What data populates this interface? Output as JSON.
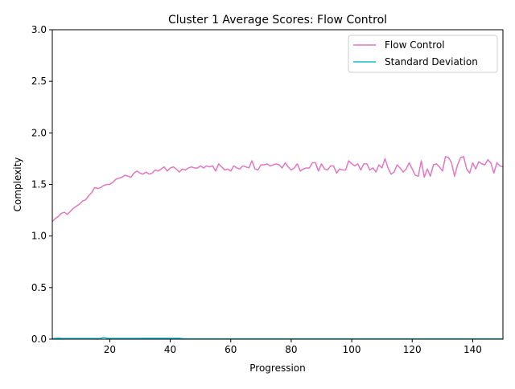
{
  "chart_data": {
    "type": "line",
    "title": "Cluster 1 Average Scores: Flow Control",
    "xlabel": "Progression",
    "ylabel": "Complexity",
    "xlim": [
      1,
      150
    ],
    "ylim": [
      0,
      3.0
    ],
    "xticks": [
      20,
      40,
      60,
      80,
      100,
      120,
      140
    ],
    "xtick_labels": [
      "20",
      "40",
      "60",
      "80",
      "100",
      "120",
      "140"
    ],
    "yticks": [
      0,
      0.5,
      1.0,
      1.5,
      2.0,
      2.5,
      3.0
    ],
    "ytick_labels": [
      "0.0",
      "0.5",
      "1.0",
      "1.5",
      "2.0",
      "2.5",
      "3.0"
    ],
    "grid": false,
    "legend_position": "top-right",
    "series": [
      {
        "name": "Flow Control",
        "color": "#e377c2",
        "x": [
          1,
          2,
          3,
          4,
          5,
          6,
          7,
          8,
          9,
          10,
          11,
          12,
          13,
          14,
          15,
          16,
          17,
          18,
          19,
          20,
          21,
          22,
          23,
          24,
          25,
          26,
          27,
          28,
          29,
          30,
          31,
          32,
          33,
          34,
          35,
          36,
          37,
          38,
          39,
          40,
          41,
          42,
          43,
          44,
          45,
          46,
          47,
          48,
          49,
          50,
          51,
          52,
          53,
          54,
          55,
          56,
          57,
          58,
          59,
          60,
          61,
          62,
          63,
          64,
          65,
          66,
          67,
          68,
          69,
          70,
          71,
          72,
          73,
          74,
          75,
          76,
          77,
          78,
          79,
          80,
          81,
          82,
          83,
          84,
          85,
          86,
          87,
          88,
          89,
          90,
          91,
          92,
          93,
          94,
          95,
          96,
          97,
          98,
          99,
          100,
          101,
          102,
          103,
          104,
          105,
          106,
          107,
          108,
          109,
          110,
          111,
          112,
          113,
          114,
          115,
          116,
          117,
          118,
          119,
          120,
          121,
          122,
          123,
          124,
          125,
          126,
          127,
          128,
          129,
          130,
          131,
          132,
          133,
          134,
          135,
          136,
          137,
          138,
          139,
          140,
          141,
          142,
          143,
          144,
          145,
          146,
          147,
          148,
          149,
          150
        ],
        "values": [
          1.14,
          1.17,
          1.19,
          1.22,
          1.23,
          1.21,
          1.24,
          1.27,
          1.29,
          1.31,
          1.34,
          1.35,
          1.39,
          1.42,
          1.47,
          1.46,
          1.47,
          1.49,
          1.5,
          1.5,
          1.52,
          1.55,
          1.56,
          1.57,
          1.59,
          1.58,
          1.57,
          1.61,
          1.63,
          1.61,
          1.6,
          1.62,
          1.6,
          1.61,
          1.64,
          1.63,
          1.65,
          1.67,
          1.63,
          1.66,
          1.67,
          1.65,
          1.62,
          1.65,
          1.64,
          1.66,
          1.67,
          1.66,
          1.66,
          1.68,
          1.66,
          1.68,
          1.67,
          1.68,
          1.63,
          1.7,
          1.67,
          1.64,
          1.65,
          1.63,
          1.68,
          1.66,
          1.65,
          1.68,
          1.67,
          1.66,
          1.73,
          1.65,
          1.64,
          1.69,
          1.69,
          1.7,
          1.68,
          1.69,
          1.7,
          1.69,
          1.66,
          1.71,
          1.67,
          1.64,
          1.66,
          1.7,
          1.63,
          1.65,
          1.66,
          1.66,
          1.71,
          1.71,
          1.63,
          1.7,
          1.65,
          1.64,
          1.68,
          1.68,
          1.61,
          1.65,
          1.64,
          1.64,
          1.73,
          1.7,
          1.68,
          1.7,
          1.64,
          1.7,
          1.7,
          1.64,
          1.66,
          1.62,
          1.69,
          1.66,
          1.75,
          1.66,
          1.6,
          1.62,
          1.69,
          1.66,
          1.62,
          1.65,
          1.71,
          1.65,
          1.59,
          1.58,
          1.73,
          1.57,
          1.65,
          1.58,
          1.69,
          1.7,
          1.67,
          1.63,
          1.77,
          1.76,
          1.71,
          1.58,
          1.69,
          1.76,
          1.77,
          1.65,
          1.61,
          1.71,
          1.65,
          1.72,
          1.7,
          1.69,
          1.74,
          1.71,
          1.61,
          1.71,
          1.68,
          1.67
        ]
      },
      {
        "name": "Standard Deviation",
        "color": "#17becf",
        "x": [
          1,
          2,
          3,
          4,
          5,
          6,
          7,
          8,
          9,
          10,
          11,
          12,
          13,
          14,
          15,
          16,
          17,
          18,
          19,
          20,
          21,
          22,
          23,
          24,
          25,
          26,
          27,
          28,
          29,
          30,
          31,
          32,
          33,
          34,
          35,
          36,
          37,
          38,
          39,
          40,
          41,
          42,
          43,
          44,
          45,
          46,
          47,
          48,
          49,
          50,
          51,
          52,
          53,
          54,
          55,
          56,
          57,
          58,
          59,
          60,
          61,
          62,
          63,
          64,
          65,
          66,
          67,
          68,
          69,
          70,
          71,
          72,
          73,
          74,
          75,
          76,
          77,
          78,
          79,
          80,
          81,
          82,
          83,
          84,
          85,
          86,
          87,
          88,
          89,
          90,
          91,
          92,
          93,
          94,
          95,
          96,
          97,
          98,
          99,
          100,
          101,
          102,
          103,
          104,
          105,
          106,
          107,
          108,
          109,
          110,
          111,
          112,
          113,
          114,
          115,
          116,
          117,
          118,
          119,
          120,
          121,
          122,
          123,
          124,
          125,
          126,
          127,
          128,
          129,
          130,
          131,
          132,
          133,
          134,
          135,
          136,
          137,
          138,
          139,
          140,
          141,
          142,
          143,
          144,
          145,
          146,
          147,
          148,
          149,
          150
        ],
        "values": [
          0.005,
          0.008,
          0.01,
          0.008,
          0.007,
          0.007,
          0.007,
          0.007,
          0.007,
          0.007,
          0.007,
          0.007,
          0.007,
          0.007,
          0.007,
          0.007,
          0.008,
          0.018,
          0.01,
          0.008,
          0.008,
          0.008,
          0.008,
          0.008,
          0.008,
          0.008,
          0.008,
          0.008,
          0.008,
          0.008,
          0.009,
          0.009,
          0.009,
          0.009,
          0.009,
          0.009,
          0.009,
          0.009,
          0.009,
          0.009,
          0.009,
          0.009,
          0.009,
          0.005,
          0.004,
          0.003,
          0.003,
          0.003,
          0.003,
          0.003,
          0.003,
          0.003,
          0.003,
          0.003,
          0.003,
          0.003,
          0.003,
          0.003,
          0.003,
          0.003,
          0.003,
          0.003,
          0.003,
          0.003,
          0.003,
          0.003,
          0.003,
          0.003,
          0.003,
          0.003,
          0.003,
          0.003,
          0.003,
          0.003,
          0.003,
          0.003,
          0.003,
          0.003,
          0.003,
          0.003,
          0.003,
          0.003,
          0.003,
          0.003,
          0.003,
          0.003,
          0.003,
          0.003,
          0.003,
          0.003,
          0.003,
          0.003,
          0.003,
          0.003,
          0.003,
          0.003,
          0.003,
          0.003,
          0.003,
          0.003,
          0.003,
          0.003,
          0.003,
          0.003,
          0.003,
          0.003,
          0.003,
          0.003,
          0.003,
          0.003,
          0.003,
          0.003,
          0.003,
          0.003,
          0.003,
          0.003,
          0.003,
          0.003,
          0.003,
          0.003,
          0.003,
          0.003,
          0.003,
          0.003,
          0.003,
          0.003,
          0.003,
          0.003,
          0.003,
          0.003,
          0.003,
          0.003,
          0.003,
          0.003,
          0.003,
          0.003,
          0.003,
          0.003,
          0.003,
          0.003,
          0.003,
          0.003,
          0.003,
          0.003,
          0.003,
          0.003,
          0.003,
          0.003,
          0.003,
          0.003
        ]
      }
    ]
  }
}
